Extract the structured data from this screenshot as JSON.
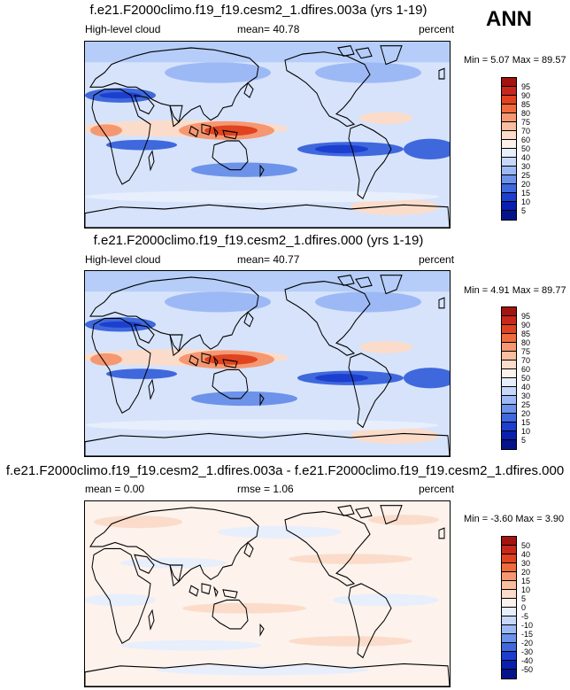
{
  "season": "ANN",
  "panels": [
    {
      "title": "f.e21.F2000climo.f19_f19.cesm2_1.dfires.003a (yrs 1-19)",
      "left_label": "High-level cloud",
      "center_label": "mean=  40.78",
      "right_label": "percent",
      "minmax": "Min =   5.07 Max =  89.57",
      "colorbar": {
        "labels": [
          "95",
          "90",
          "85",
          "80",
          "75",
          "70",
          "60",
          "50",
          "40",
          "30",
          "25",
          "20",
          "15",
          "10",
          "5"
        ],
        "colors": [
          "#a3140e",
          "#c8281a",
          "#e0431f",
          "#ef6b3d",
          "#f59872",
          "#f9bda0",
          "#fbdccb",
          "#fdf2ec",
          "#e7eefc",
          "#c6d7fa",
          "#9db9f5",
          "#6c92ea",
          "#3f68dd",
          "#1c3fcf",
          "#0a1fb0",
          "#03148a"
        ]
      }
    },
    {
      "title": "f.e21.F2000climo.f19_f19.cesm2_1.dfires.000 (yrs 1-19)",
      "left_label": "High-level cloud",
      "center_label": "mean=  40.77",
      "right_label": "percent",
      "minmax": "Min =   4.91 Max =  89.77",
      "colorbar": {
        "labels": [
          "95",
          "90",
          "85",
          "80",
          "75",
          "70",
          "60",
          "50",
          "40",
          "30",
          "25",
          "20",
          "15",
          "10",
          "5"
        ],
        "colors": [
          "#a3140e",
          "#c8281a",
          "#e0431f",
          "#ef6b3d",
          "#f59872",
          "#f9bda0",
          "#fbdccb",
          "#fdf2ec",
          "#e7eefc",
          "#c6d7fa",
          "#9db9f5",
          "#6c92ea",
          "#3f68dd",
          "#1c3fcf",
          "#0a1fb0",
          "#03148a"
        ]
      }
    },
    {
      "title": "f.e21.F2000climo.f19_f19.cesm2_1.dfires.003a - f.e21.F2000climo.f19_f19.cesm2_1.dfires.000",
      "left_label": "mean =   0.00",
      "center_label": "rmse =   1.06",
      "right_label": "percent",
      "minmax": "Min =  -3.60 Max =   3.90",
      "colorbar": {
        "labels": [
          "50",
          "40",
          "30",
          "20",
          "15",
          "10",
          "5",
          "0",
          "-5",
          "-10",
          "-15",
          "-20",
          "-30",
          "-40",
          "-50"
        ],
        "colors": [
          "#a3140e",
          "#c8281a",
          "#e0431f",
          "#ef6b3d",
          "#f59872",
          "#f9bda0",
          "#fbdccb",
          "#fdf2ec",
          "#e7eefc",
          "#c6d7fa",
          "#9db9f5",
          "#6c92ea",
          "#3f68dd",
          "#1c3fcf",
          "#0a1fb0",
          "#03148a"
        ]
      }
    }
  ]
}
